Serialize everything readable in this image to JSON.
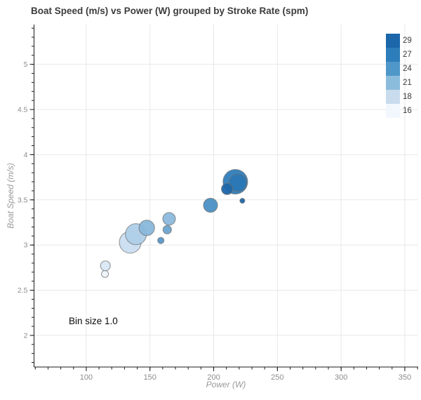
{
  "title": "Boat Speed (m/s) vs Power (W) grouped by Stroke Rate (spm)",
  "annotation_text": "Bin size 1.0",
  "colors": {
    "background": "#ffffff",
    "grid": "#e8e8e8",
    "axis": "#1a1a1a",
    "tick_label": "#8c8c8c",
    "axis_title": "#9a9a9a",
    "title": "#3c3c3c",
    "point_stroke": "#6e6e6e",
    "annotation": "#0a0a0a"
  },
  "chart_data": {
    "type": "scatter",
    "title": "Boat Speed (m/s) vs Power (W) grouped by Stroke Rate (spm)",
    "xlabel": "Power (W)",
    "ylabel": "Boat Speed (m/s)",
    "xlim": [
      59,
      360.5
    ],
    "ylim": [
      1.65,
      5.44
    ],
    "x_ticks": [
      100,
      150,
      200,
      250,
      300,
      350
    ],
    "x_tick_labels": [
      "100",
      "150",
      "200",
      "250",
      "300",
      "350"
    ],
    "y_ticks": [
      2,
      2.5,
      3,
      3.5,
      4,
      4.5,
      5
    ],
    "y_tick_labels": [
      "2",
      "2.5",
      "3",
      "3.5",
      "4",
      "4.5",
      "5"
    ],
    "x_minor_step": 10,
    "y_minor_step": 0.1,
    "grid": true,
    "legend_position": "top-right",
    "legend": [
      {
        "label": "29",
        "color": "#1b67aa"
      },
      {
        "label": "27",
        "color": "#2e7dbb"
      },
      {
        "label": "24",
        "color": "#4f97c8"
      },
      {
        "label": "21",
        "color": "#8cbcdc"
      },
      {
        "label": "18",
        "color": "#c9dcee"
      },
      {
        "label": "16",
        "color": "#f1f7fc"
      }
    ],
    "annotation": {
      "text": "Bin size 1.0",
      "x": 87,
      "y": 2.1
    },
    "points": [
      {
        "power": 114.7,
        "speed": 2.68,
        "stroke_rate": 16,
        "r": 5,
        "color": "#eef4fb"
      },
      {
        "power": 115.0,
        "speed": 2.77,
        "stroke_rate": 18,
        "r": 7,
        "color": "#d9e7f5"
      },
      {
        "power": 134.5,
        "speed": 3.03,
        "stroke_rate": 18,
        "r": 15.5,
        "color": "#cadef1"
      },
      {
        "power": 139.0,
        "speed": 3.12,
        "stroke_rate": 21,
        "r": 15,
        "color": "#aecfe8"
      },
      {
        "power": 147.5,
        "speed": 3.19,
        "stroke_rate": 21,
        "r": 11,
        "color": "#89b7db"
      },
      {
        "power": 158.5,
        "speed": 3.05,
        "stroke_rate": 24,
        "r": 4.5,
        "color": "#5897c7"
      },
      {
        "power": 163.5,
        "speed": 3.17,
        "stroke_rate": 24,
        "r": 6,
        "color": "#6aa4cf"
      },
      {
        "power": 165.0,
        "speed": 3.29,
        "stroke_rate": 21,
        "r": 9,
        "color": "#8cb9dc"
      },
      {
        "power": 197.5,
        "speed": 3.44,
        "stroke_rate": 24,
        "r": 10,
        "color": "#4a90c4"
      },
      {
        "power": 217.0,
        "speed": 3.7,
        "stroke_rate": 27,
        "r": 17.5,
        "color": "#2e7dbb"
      },
      {
        "power": 219.0,
        "speed": 3.69,
        "stroke_rate": 27,
        "r": 12.5,
        "color": "#2a77b5"
      },
      {
        "power": 210.5,
        "speed": 3.62,
        "stroke_rate": 29,
        "r": 8,
        "color": "#1d66a9"
      },
      {
        "power": 222.5,
        "speed": 3.49,
        "stroke_rate": 29,
        "r": 3.5,
        "color": "#1d66a9"
      }
    ]
  }
}
